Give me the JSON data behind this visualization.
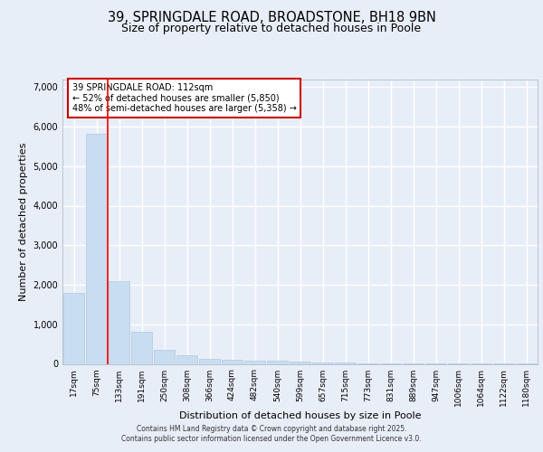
{
  "title": "39, SPRINGDALE ROAD, BROADSTONE, BH18 9BN",
  "subtitle": "Size of property relative to detached houses in Poole",
  "xlabel": "Distribution of detached houses by size in Poole",
  "ylabel": "Number of detached properties",
  "categories": [
    "17sqm",
    "75sqm",
    "133sqm",
    "191sqm",
    "250sqm",
    "308sqm",
    "366sqm",
    "424sqm",
    "482sqm",
    "540sqm",
    "599sqm",
    "657sqm",
    "715sqm",
    "773sqm",
    "831sqm",
    "889sqm",
    "947sqm",
    "1006sqm",
    "1064sqm",
    "1122sqm",
    "1180sqm"
  ],
  "values": [
    1800,
    5820,
    2090,
    820,
    360,
    210,
    130,
    100,
    80,
    70,
    55,
    40,
    28,
    18,
    12,
    8,
    5,
    3,
    2,
    1,
    1
  ],
  "bar_color": "#c9ddf0",
  "bar_edge_color": "#b0c8e0",
  "red_line_x": 1.5,
  "annotation_text": "39 SPRINGDALE ROAD: 112sqm\n← 52% of detached houses are smaller (5,850)\n48% of semi-detached houses are larger (5,358) →",
  "annotation_box_color": "#ffffff",
  "annotation_border_color": "#cc0000",
  "ylim": [
    0,
    7200
  ],
  "yticks": [
    0,
    1000,
    2000,
    3000,
    4000,
    5000,
    6000,
    7000
  ],
  "background_color": "#e8eef8",
  "plot_background": "#e8eef8",
  "grid_color": "#ffffff",
  "footer_line1": "Contains HM Land Registry data © Crown copyright and database right 2025.",
  "footer_line2": "Contains public sector information licensed under the Open Government Licence v3.0.",
  "title_fontsize": 10.5,
  "subtitle_fontsize": 9,
  "tick_fontsize": 6.5,
  "ylabel_fontsize": 8,
  "xlabel_fontsize": 8,
  "annotation_fontsize": 7,
  "footer_fontsize": 5.5
}
